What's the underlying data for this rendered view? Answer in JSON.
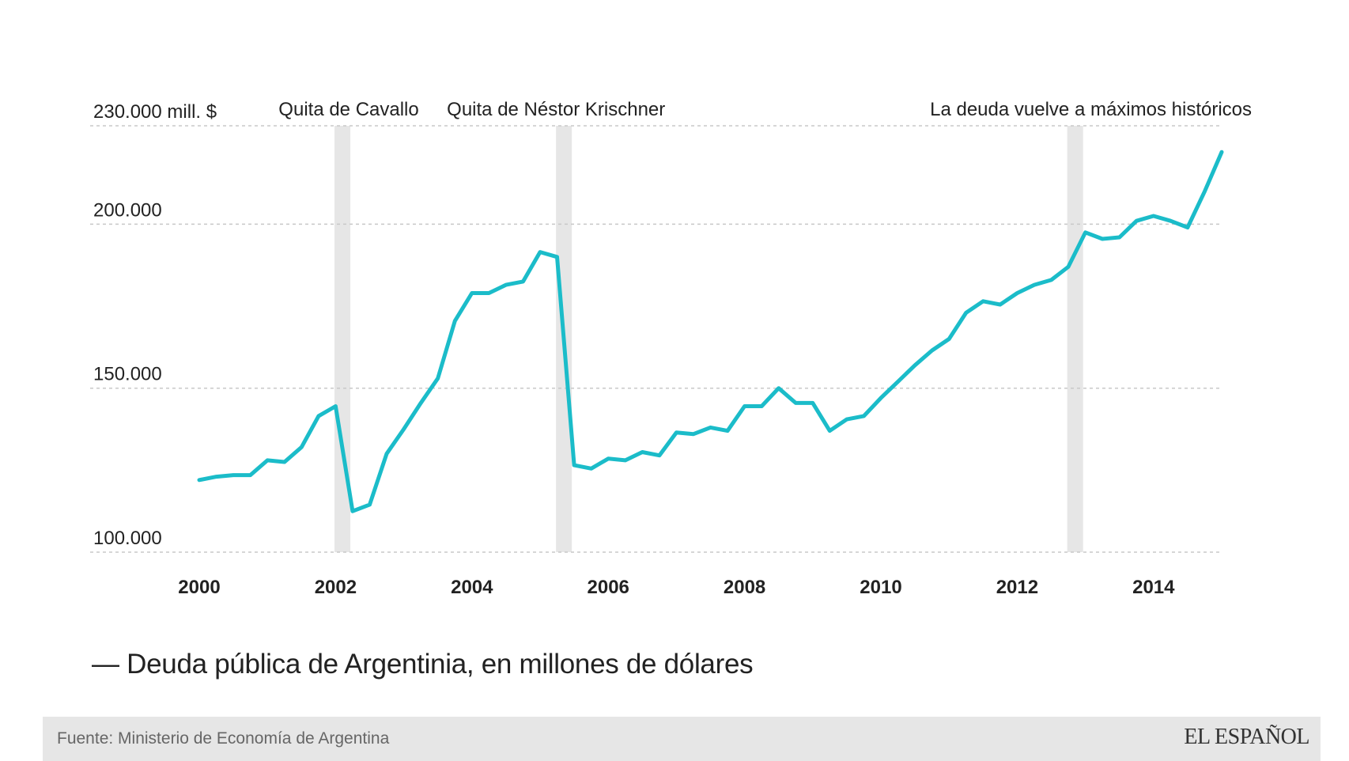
{
  "chart_data": {
    "type": "line",
    "title": "Deuda pública de Argentinia, en millones de dólares",
    "legend_label": "Deuda pública de Argentinia, en millones de dólares",
    "legend_marker": "—",
    "xlabel": "",
    "ylabel": "",
    "ylim": [
      100000,
      230000
    ],
    "xlim": [
      2000,
      2015
    ],
    "y_ticks": [
      {
        "value": 230000,
        "label": "230.000 mill. $"
      },
      {
        "value": 200000,
        "label": "200.000"
      },
      {
        "value": 150000,
        "label": "150.000"
      },
      {
        "value": 100000,
        "label": "100.000"
      }
    ],
    "x_ticks": [
      {
        "value": 2000,
        "label": "2000"
      },
      {
        "value": 2002,
        "label": "2002"
      },
      {
        "value": 2004,
        "label": "2004"
      },
      {
        "value": 2006,
        "label": "2006"
      },
      {
        "value": 2008,
        "label": "2008"
      },
      {
        "value": 2010,
        "label": "2010"
      },
      {
        "value": 2012,
        "label": "2012"
      },
      {
        "value": 2014,
        "label": "2014"
      }
    ],
    "annotations": [
      {
        "x": 2002.1,
        "label": "Quita de Cavallo"
      },
      {
        "x": 2005.35,
        "label": "Quita de Néstor Krischner"
      },
      {
        "x": 2012.85,
        "label": "La deuda vuelve a máximos históricos"
      }
    ],
    "series": [
      {
        "name": "Deuda pública",
        "color": "#1bbcc9",
        "x": [
          2000,
          2000.25,
          2000.5,
          2000.75,
          2001,
          2001.25,
          2001.5,
          2001.75,
          2002,
          2002.25,
          2002.5,
          2002.75,
          2003,
          2003.25,
          2003.5,
          2003.75,
          2004,
          2004.25,
          2004.5,
          2004.75,
          2005,
          2005.25,
          2005.5,
          2005.75,
          2006,
          2006.25,
          2006.5,
          2006.75,
          2007,
          2007.25,
          2007.5,
          2007.75,
          2008,
          2008.25,
          2008.5,
          2008.75,
          2009,
          2009.25,
          2009.5,
          2009.75,
          2010,
          2010.25,
          2010.5,
          2010.75,
          2011,
          2011.25,
          2011.5,
          2011.75,
          2012,
          2012.25,
          2012.5,
          2012.75,
          2013,
          2013.25,
          2013.5,
          2013.75,
          2014,
          2014.25,
          2014.5,
          2014.75,
          2015
        ],
        "values": [
          122000,
          123000,
          123500,
          123500,
          128000,
          127500,
          132000,
          141500,
          144500,
          112500,
          114500,
          130000,
          137500,
          145500,
          153000,
          170500,
          179000,
          179000,
          181500,
          182500,
          191500,
          190000,
          126500,
          125500,
          128500,
          128000,
          130500,
          129500,
          136500,
          136000,
          138000,
          137000,
          144500,
          144500,
          150000,
          145500,
          145500,
          137000,
          140500,
          141500,
          147000,
          152000,
          157000,
          161500,
          165000,
          173000,
          176500,
          175500,
          179000,
          181500,
          183000,
          187000,
          197500,
          195500,
          196000,
          201000,
          202500,
          201000,
          199000,
          210000,
          222000
        ]
      }
    ]
  },
  "colors": {
    "line": "#1bbcc9",
    "band": "#e6e6e6",
    "grid": "#c8c8c8",
    "footer_bg": "#e6e6e6"
  },
  "footer": {
    "source": "Fuente: Ministerio de Economía de Argentina",
    "logo": "EL ESPAÑOL"
  }
}
